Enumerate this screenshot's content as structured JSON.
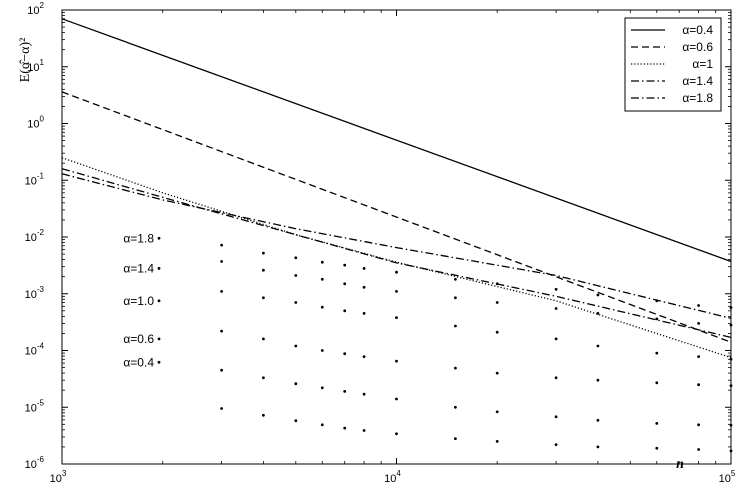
{
  "chart_data": {
    "type": "line",
    "title": "",
    "xlabel": "n",
    "ylabel": "E(α̂−α)²",
    "x_scale": "log",
    "y_scale": "log",
    "xlim": [
      1000,
      100000
    ],
    "ylim": [
      1e-06,
      100
    ],
    "x_ticks": [
      1000,
      10000,
      100000
    ],
    "y_ticks": [
      1e-06,
      1e-05,
      0.0001,
      0.001,
      0.01,
      0.1,
      1,
      10,
      100
    ],
    "grid": false,
    "legend_position": "top-right",
    "series": [
      {
        "name": "α=0.4",
        "style": "solid",
        "points": [
          [
            1000,
            70
          ],
          [
            100000,
            0.0037
          ]
        ]
      },
      {
        "name": "α=0.6",
        "style": "dashed",
        "points": [
          [
            1000,
            3.6
          ],
          [
            100000,
            0.00014
          ]
        ]
      },
      {
        "name": "α=1",
        "style": "dotted",
        "points": [
          [
            1000,
            0.25
          ],
          [
            2000,
            0.06
          ],
          [
            5000,
            0.011
          ],
          [
            10000,
            0.0036
          ],
          [
            30000,
            0.00075
          ],
          [
            100000,
            7.5e-05
          ]
        ]
      },
      {
        "name": "α=1.4",
        "style": "dashdot",
        "points": [
          [
            1000,
            0.16
          ],
          [
            2000,
            0.05
          ],
          [
            5000,
            0.011
          ],
          [
            10000,
            0.0035
          ],
          [
            30000,
            0.0009
          ],
          [
            100000,
            0.00017
          ]
        ]
      },
      {
        "name": "α=1.8",
        "style": "dashdot",
        "points": [
          [
            1000,
            0.13
          ],
          [
            2000,
            0.045
          ],
          [
            5000,
            0.014
          ],
          [
            10000,
            0.0065
          ],
          [
            30000,
            0.0021
          ],
          [
            100000,
            0.00037
          ]
        ]
      }
    ],
    "dotted_series": [
      {
        "label": "α=1.8",
        "label_y": 0.0095,
        "points": [
          [
            3000,
            0.0072
          ],
          [
            4000,
            0.0052
          ],
          [
            5000,
            0.0043
          ],
          [
            6000,
            0.0036
          ],
          [
            7000,
            0.0032
          ],
          [
            8000,
            0.0028
          ],
          [
            10000,
            0.0024
          ],
          [
            15000,
            0.0018
          ],
          [
            20000,
            0.0015
          ],
          [
            30000,
            0.0012
          ],
          [
            40000,
            0.00095
          ],
          [
            60000,
            0.00075
          ],
          [
            80000,
            0.00062
          ],
          [
            100000,
            0.00057
          ]
        ]
      },
      {
        "label": "α=1.4",
        "label_y": 0.0028,
        "points": [
          [
            3000,
            0.0037
          ],
          [
            4000,
            0.0026
          ],
          [
            5000,
            0.0021
          ],
          [
            6000,
            0.0018
          ],
          [
            7000,
            0.0015
          ],
          [
            8000,
            0.0013
          ],
          [
            10000,
            0.0011
          ],
          [
            15000,
            0.00085
          ],
          [
            20000,
            0.0007
          ],
          [
            30000,
            0.00055
          ],
          [
            40000,
            0.00045
          ],
          [
            60000,
            0.00036
          ],
          [
            80000,
            0.0003
          ],
          [
            100000,
            0.00028
          ]
        ]
      },
      {
        "label": "α=1.0",
        "label_y": 0.00075,
        "points": [
          [
            3000,
            0.0011
          ],
          [
            4000,
            0.00085
          ],
          [
            5000,
            0.0007
          ],
          [
            6000,
            0.00058
          ],
          [
            7000,
            0.0005
          ],
          [
            8000,
            0.00045
          ],
          [
            10000,
            0.00038
          ],
          [
            15000,
            0.00027
          ],
          [
            20000,
            0.00021
          ],
          [
            30000,
            0.00016
          ],
          [
            40000,
            0.00012
          ],
          [
            60000,
            9e-05
          ],
          [
            80000,
            7.8e-05
          ],
          [
            100000,
            7e-05
          ]
        ]
      },
      {
        "label": "α=0.6",
        "label_y": 0.00016,
        "points": [
          [
            3000,
            0.00022
          ],
          [
            4000,
            0.00016
          ],
          [
            5000,
            0.00012
          ],
          [
            6000,
            0.0001
          ],
          [
            7000,
            8.8e-05
          ],
          [
            8000,
            7.8e-05
          ],
          [
            10000,
            6.5e-05
          ],
          [
            15000,
            4.9e-05
          ],
          [
            20000,
            4e-05
          ],
          [
            30000,
            3.3e-05
          ],
          [
            40000,
            3e-05
          ],
          [
            60000,
            2.7e-05
          ],
          [
            80000,
            2.5e-05
          ],
          [
            100000,
            2.4e-05
          ]
        ]
      },
      {
        "label": "α=0.4",
        "label_y": 6.2e-05,
        "points": [
          [
            3000,
            4.5e-05
          ],
          [
            4000,
            3.3e-05
          ],
          [
            5000,
            2.6e-05
          ],
          [
            6000,
            2.2e-05
          ],
          [
            7000,
            1.9e-05
          ],
          [
            8000,
            1.7e-05
          ],
          [
            10000,
            1.4e-05
          ],
          [
            15000,
            1e-05
          ],
          [
            20000,
            8.3e-06
          ],
          [
            30000,
            6.8e-06
          ],
          [
            40000,
            5.9e-06
          ],
          [
            60000,
            5.2e-06
          ],
          [
            80000,
            4.9e-06
          ],
          [
            100000,
            4.8e-06
          ]
        ]
      },
      {
        "label": "",
        "label_y": null,
        "points": [
          [
            3000,
            9.5e-06
          ],
          [
            4000,
            7.2e-06
          ],
          [
            5000,
            5.8e-06
          ],
          [
            6000,
            4.9e-06
          ],
          [
            7000,
            4.3e-06
          ],
          [
            8000,
            3.9e-06
          ],
          [
            10000,
            3.4e-06
          ],
          [
            15000,
            2.8e-06
          ],
          [
            20000,
            2.5e-06
          ],
          [
            30000,
            2.2e-06
          ],
          [
            40000,
            2e-06
          ],
          [
            60000,
            1.9e-06
          ],
          [
            80000,
            1.8e-06
          ],
          [
            100000,
            1.7e-06
          ]
        ]
      }
    ]
  }
}
